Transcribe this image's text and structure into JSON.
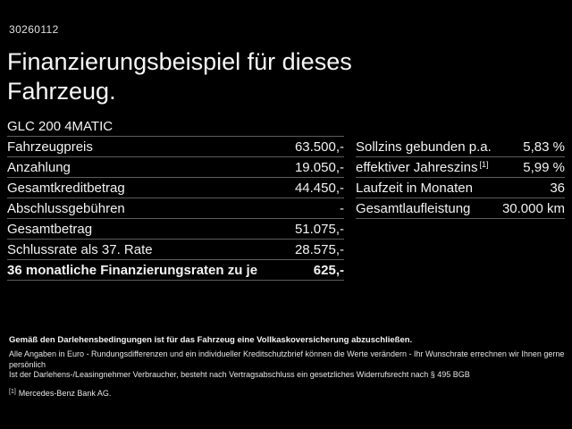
{
  "header": {
    "offer_id": "30260112",
    "title_line1": "Finanzierungsbeispiel für dieses",
    "title_line2": "Fahrzeug."
  },
  "left_table": {
    "header": "GLC 200 4MATIC",
    "rows": [
      {
        "label": "Fahrzeugpreis",
        "value": "63.500,-"
      },
      {
        "label": "Anzahlung",
        "value": "19.050,-"
      },
      {
        "label": "Gesamtkreditbetrag",
        "value": "44.450,-"
      },
      {
        "label": "Abschlussgebühren",
        "value": "-"
      },
      {
        "label": "Gesamtbetrag",
        "value": "51.075,-"
      },
      {
        "label": "Schlussrate als 37. Rate",
        "value": "28.575,-"
      },
      {
        "label": "36 monatliche Finanzierungsraten zu je",
        "value": "625,-"
      }
    ]
  },
  "right_table": {
    "rows": [
      {
        "label": "Sollzins gebunden p.a.",
        "value": "5,83 %"
      },
      {
        "label": "effektiver Jahreszins",
        "sup": "[1]",
        "value": "5,99 %"
      },
      {
        "label": "Laufzeit in Monaten",
        "value": "36"
      },
      {
        "label": "Gesamtlaufleistung",
        "value": "30.000 km"
      }
    ]
  },
  "footer": {
    "bold_note": "Gemäß den Darlehensbedingungen ist für das Fahrzeug eine Vollkaskoversicherung abzuschließen.",
    "note1": "Alle Angaben in Euro - Rundungsdifferenzen und ein individueller Kreditschutzbrief können die Werte verändern - Ihr Wunschrate errechnen wir Ihnen gerne persönlich",
    "note2": "Ist der Darlehens-/Leasingnehmer Verbraucher, besteht nach Vertragsabschluss ein gesetzliches Widerrufsrecht nach § 495 BGB",
    "footnote_marker": "[1]",
    "footnote_text": "Mercedes-Benz Bank AG."
  },
  "colors": {
    "background": "#000000",
    "text": "#f2f2f2",
    "divider": "#5c5c5c"
  }
}
